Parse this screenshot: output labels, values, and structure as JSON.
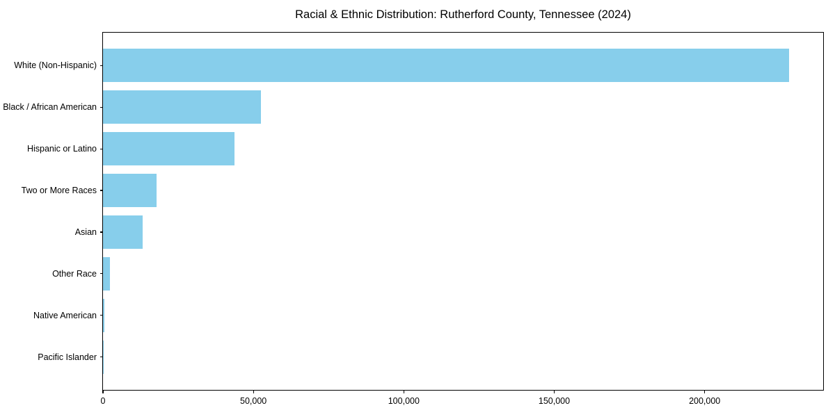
{
  "chart_data": {
    "type": "bar",
    "orientation": "horizontal",
    "title": "Racial & Ethnic Distribution: Rutherford County, Tennessee (2024)",
    "xlabel": "",
    "ylabel": "",
    "categories": [
      "White (Non-Hispanic)",
      "Black / African American",
      "Hispanic or Latino",
      "Two or More Races",
      "Asian",
      "Other Race",
      "Native American",
      "Pacific Islander"
    ],
    "values": [
      228000,
      52500,
      43800,
      17800,
      13100,
      2300,
      500,
      200
    ],
    "x_ticks": [
      0,
      50000,
      100000,
      150000,
      200000
    ],
    "x_tick_labels": [
      "0",
      "50,000",
      "100,000",
      "150,000",
      "200,000"
    ],
    "xlim": [
      0,
      239400
    ],
    "bar_color": "#87CEEB",
    "background_color": "#FFFFFF",
    "spine_color": "#000000",
    "grid": false,
    "legend": false
  }
}
